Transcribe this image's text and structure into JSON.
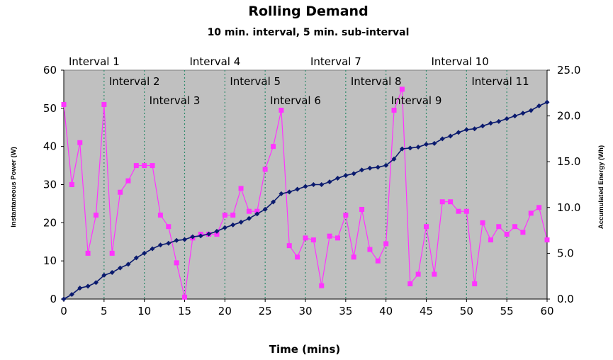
{
  "chart_data": {
    "type": "line",
    "title": "Rolling Demand",
    "subtitle": "10 min. interval, 5 min. sub-interval",
    "xlabel": "Time (mins)",
    "ylabel_left": "Instantaneous Power (W)",
    "ylabel_right": "Accumulated Energy (Wh)",
    "xlim": [
      0,
      60
    ],
    "ylim_left": [
      0,
      60
    ],
    "ylim_right": [
      0,
      25
    ],
    "x_ticks": [
      "0",
      "5",
      "10",
      "15",
      "20",
      "25",
      "30",
      "35",
      "40",
      "45",
      "50",
      "55",
      "60"
    ],
    "y_left_ticks": [
      "0",
      "10",
      "20",
      "30",
      "40",
      "50",
      "60"
    ],
    "y_right_ticks": [
      "0.0",
      "5.0",
      "10.0",
      "15.0",
      "20.0",
      "25.0"
    ],
    "interval_lines": [
      5,
      10,
      15,
      20,
      25,
      30,
      35,
      40,
      45,
      50,
      55
    ],
    "interval_labels": [
      {
        "text": "Interval 1",
        "start": 0,
        "row": 0
      },
      {
        "text": "Interval 2",
        "start": 5,
        "row": 1
      },
      {
        "text": "Interval 3",
        "start": 10,
        "row": 2
      },
      {
        "text": "Interval 4",
        "start": 15,
        "row": 0
      },
      {
        "text": "Interval 5",
        "start": 20,
        "row": 1
      },
      {
        "text": "Interval 6",
        "start": 25,
        "row": 2
      },
      {
        "text": "Interval 7",
        "start": 30,
        "row": 0
      },
      {
        "text": "Interval 8",
        "start": 35,
        "row": 1
      },
      {
        "text": "Interval 9",
        "start": 40,
        "row": 2
      },
      {
        "text": "Interval 10",
        "start": 45,
        "row": 0
      },
      {
        "text": "Interval 11",
        "start": 50,
        "row": 1
      }
    ],
    "series": [
      {
        "axis": "left",
        "color": "#ff33ff",
        "marker": "square",
        "x": [
          0,
          1,
          2,
          3,
          4,
          5,
          6,
          7,
          8,
          9,
          10,
          11,
          12,
          13,
          14,
          15,
          16,
          17,
          18,
          19,
          20,
          21,
          22,
          23,
          24,
          25,
          26,
          27,
          28,
          29,
          30,
          31,
          32,
          33,
          34,
          35,
          36,
          37,
          38,
          39,
          40,
          41,
          42,
          43,
          44,
          45,
          46,
          47,
          48,
          49,
          50,
          51,
          52,
          53,
          54,
          55,
          56,
          57,
          58,
          59,
          60
        ],
        "values": [
          51,
          30,
          41,
          12,
          22,
          51,
          12,
          28,
          31,
          35,
          35,
          35,
          22,
          19,
          9.5,
          0.5,
          16,
          17,
          17,
          17,
          22,
          22,
          29,
          23,
          23,
          34,
          40,
          49.5,
          14,
          11,
          16,
          15.5,
          3.5,
          16.5,
          16,
          22,
          11,
          23.5,
          13,
          10,
          14.5,
          49.5,
          55,
          4,
          6.5,
          19,
          6.5,
          25.5,
          25.5,
          23,
          23,
          4,
          20,
          15.5,
          19,
          17,
          19,
          17.5,
          22.5,
          24,
          15.5
        ]
      },
      {
        "axis": "right",
        "color": "#0a1a6e",
        "marker": "diamond",
        "x": [
          0,
          1,
          2,
          3,
          4,
          5,
          6,
          7,
          8,
          9,
          10,
          11,
          12,
          13,
          14,
          15,
          16,
          17,
          18,
          19,
          20,
          21,
          22,
          23,
          24,
          25,
          26,
          27,
          28,
          29,
          30,
          31,
          32,
          33,
          34,
          35,
          36,
          37,
          38,
          39,
          40,
          41,
          42,
          43,
          44,
          45,
          46,
          47,
          48,
          49,
          50,
          51,
          52,
          53,
          54,
          55,
          56,
          57,
          58,
          59,
          60
        ],
        "values": [
          0,
          0.5,
          1.2,
          1.4,
          1.8,
          2.6,
          2.9,
          3.4,
          3.8,
          4.5,
          5.0,
          5.5,
          5.9,
          6.1,
          6.4,
          6.5,
          6.8,
          6.9,
          7.1,
          7.4,
          7.8,
          8.1,
          8.4,
          8.8,
          9.3,
          9.8,
          10.6,
          11.5,
          11.7,
          12.0,
          12.3,
          12.5,
          12.5,
          12.8,
          13.2,
          13.5,
          13.7,
          14.1,
          14.3,
          14.4,
          14.6,
          15.3,
          16.4,
          16.5,
          16.6,
          16.9,
          17.0,
          17.5,
          17.8,
          18.2,
          18.5,
          18.6,
          18.9,
          19.2,
          19.4,
          19.7,
          20.0,
          20.3,
          20.6,
          21.1,
          21.5
        ]
      }
    ]
  }
}
